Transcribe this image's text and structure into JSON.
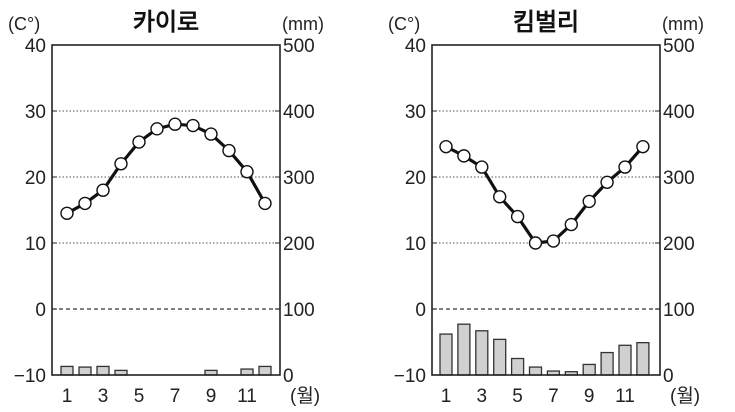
{
  "chart_data": [
    {
      "type": "bar+line",
      "title": "카이로",
      "left_unit": "(C°)",
      "right_unit": "(mm)",
      "x_unit": "(월)",
      "categories": [
        1,
        2,
        3,
        4,
        5,
        6,
        7,
        8,
        9,
        10,
        11,
        12
      ],
      "x_tick_labels": [
        "1",
        "3",
        "5",
        "7",
        "9",
        "11"
      ],
      "temp_ticks": [
        "40",
        "30",
        "20",
        "10",
        "0",
        "−10"
      ],
      "precip_ticks": [
        "500",
        "400",
        "300",
        "200",
        "100",
        "0"
      ],
      "temp_range": [
        -10,
        40
      ],
      "precip_range": [
        0,
        500
      ],
      "temperature": [
        14.5,
        16,
        18,
        22,
        25.3,
        27.3,
        28,
        27.8,
        26.5,
        24,
        20.8,
        16
      ],
      "precipitation": [
        13,
        12,
        13,
        7,
        0,
        0,
        0,
        0,
        7,
        0,
        9,
        13
      ]
    },
    {
      "type": "bar+line",
      "title": "킴벌리",
      "left_unit": "(C°)",
      "right_unit": "(mm)",
      "x_unit": "(월)",
      "categories": [
        1,
        2,
        3,
        4,
        5,
        6,
        7,
        8,
        9,
        10,
        11,
        12
      ],
      "x_tick_labels": [
        "1",
        "3",
        "5",
        "7",
        "9",
        "11"
      ],
      "temp_ticks": [
        "40",
        "30",
        "20",
        "10",
        "0",
        "−10"
      ],
      "precip_ticks": [
        "500",
        "400",
        "300",
        "200",
        "100",
        "0"
      ],
      "temp_range": [
        -10,
        40
      ],
      "precip_range": [
        0,
        500
      ],
      "temperature": [
        24.6,
        23.2,
        21.5,
        17,
        14,
        10,
        10.3,
        12.8,
        16.3,
        19.2,
        21.5,
        24.6
      ],
      "precipitation": [
        62,
        77,
        67,
        54,
        25,
        12,
        6,
        5,
        16,
        34,
        45,
        49
      ]
    }
  ],
  "colors": {
    "bar_fill": "#d0d0d0",
    "line": "#111111"
  }
}
